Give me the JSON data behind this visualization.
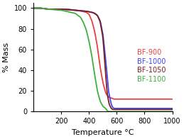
{
  "title": "",
  "xlabel": "Temperature °C",
  "ylabel": "% Mass",
  "xlim": [
    0,
    1000
  ],
  "ylim": [
    0,
    105
  ],
  "xticks": [
    200,
    400,
    600,
    800,
    1000
  ],
  "yticks": [
    0,
    20,
    40,
    60,
    80,
    100
  ],
  "legend": [
    "BF-900",
    "BF-1000",
    "BF-1050",
    "BF-1100"
  ],
  "colors": [
    "#e8413c",
    "#4444ee",
    "#7b2020",
    "#3db03d"
  ],
  "series": {
    "BF-900": {
      "x": [
        0,
        50,
        100,
        150,
        200,
        250,
        300,
        350,
        380,
        400,
        420,
        440,
        460,
        480,
        500,
        520,
        540,
        560,
        580,
        600,
        650,
        700,
        800,
        1000
      ],
      "y": [
        100,
        100,
        99,
        99,
        99,
        99,
        98,
        97,
        96,
        94,
        88,
        78,
        63,
        43,
        28,
        18,
        14,
        13,
        12,
        12,
        12,
        12,
        12,
        12
      ]
    },
    "BF-1000": {
      "x": [
        0,
        50,
        100,
        200,
        300,
        380,
        420,
        440,
        460,
        480,
        500,
        520,
        540,
        560,
        570,
        580,
        590,
        600,
        700,
        800,
        1000
      ],
      "y": [
        100,
        100,
        99,
        99,
        98,
        97,
        96,
        95,
        93,
        88,
        75,
        50,
        20,
        7,
        4,
        3,
        3,
        3,
        3,
        3,
        3
      ]
    },
    "BF-1050": {
      "x": [
        0,
        50,
        100,
        200,
        300,
        380,
        420,
        440,
        460,
        480,
        500,
        515,
        530,
        545,
        560,
        570,
        580,
        600,
        700,
        800,
        1000
      ],
      "y": [
        100,
        100,
        99,
        99,
        98,
        97,
        96,
        95,
        93,
        87,
        72,
        45,
        18,
        7,
        3,
        2,
        2,
        2,
        2,
        2,
        2
      ]
    },
    "BF-1100": {
      "x": [
        0,
        50,
        100,
        200,
        300,
        340,
        360,
        380,
        400,
        420,
        440,
        460,
        480,
        500,
        510,
        520,
        525,
        530,
        535,
        540,
        600,
        800,
        1000
      ],
      "y": [
        100,
        100,
        99,
        98,
        95,
        91,
        86,
        79,
        68,
        54,
        36,
        20,
        10,
        5,
        4,
        3,
        2,
        1,
        0,
        0,
        0,
        0,
        0
      ]
    }
  },
  "background_color": "#ffffff",
  "label_fontsize": 8,
  "tick_fontsize": 7,
  "legend_fontsize": 7,
  "linewidth": 1.3
}
